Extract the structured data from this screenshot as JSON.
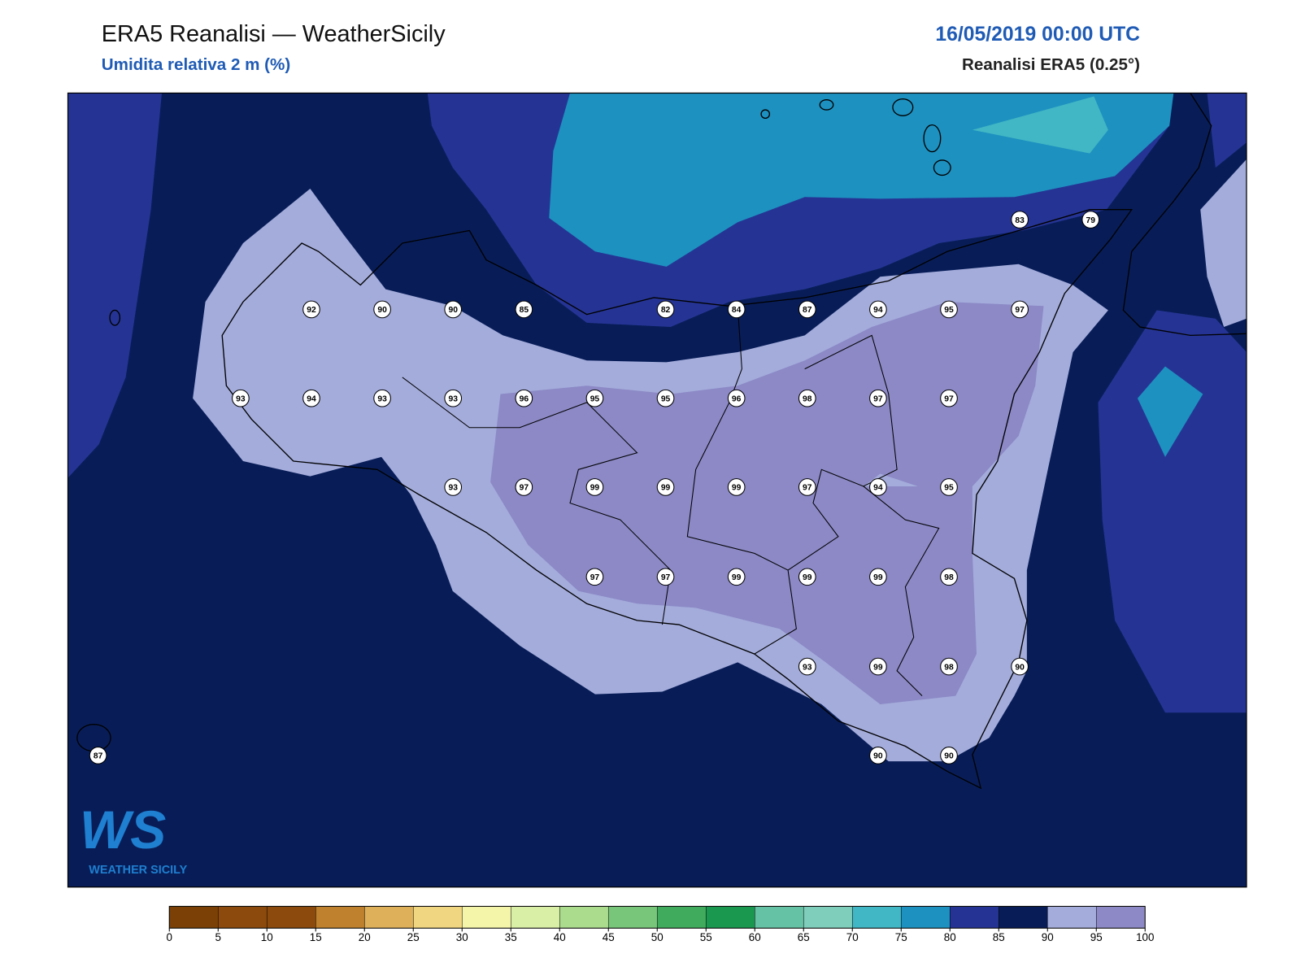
{
  "header": {
    "title": "ERA5 Reanalisi — WeatherSicily",
    "subtitle": "Umidita relativa 2 m (%)",
    "date": "16/05/2019 00:00 UTC",
    "source": "Reanalisi ERA5 (0.25°)"
  },
  "logo": {
    "mark": "WS",
    "text": "WEATHER SICILY"
  },
  "stations": [
    83,
    79,
    92,
    90,
    90,
    85,
    82,
    84,
    87,
    94,
    95,
    97,
    93,
    94,
    93,
    93,
    96,
    95,
    95,
    96,
    98,
    97,
    97,
    93,
    97,
    99,
    99,
    99,
    97,
    94,
    95,
    97,
    97,
    99,
    99,
    99,
    98,
    93,
    99,
    98,
    90,
    87,
    90,
    90
  ],
  "colorbar": {
    "levels": [
      0,
      5,
      10,
      15,
      20,
      25,
      30,
      35,
      40,
      45,
      50,
      55,
      60,
      65,
      70,
      75,
      80,
      85,
      90,
      95,
      100
    ],
    "colors": [
      "#7a4005",
      "#8c4a0c",
      "#8c4a0c",
      "#bf812d",
      "#dfb05a",
      "#f0d680",
      "#f5f5a9",
      "#d9efa5",
      "#abdc8e",
      "#78c679",
      "#41ab5d",
      "#1a9850",
      "#66c2a4",
      "#7fcdbb",
      "#41b6c4",
      "#1d91c0",
      "#253494",
      "#081d58",
      "#a4acdb",
      "#8c89c6"
    ]
  }
}
